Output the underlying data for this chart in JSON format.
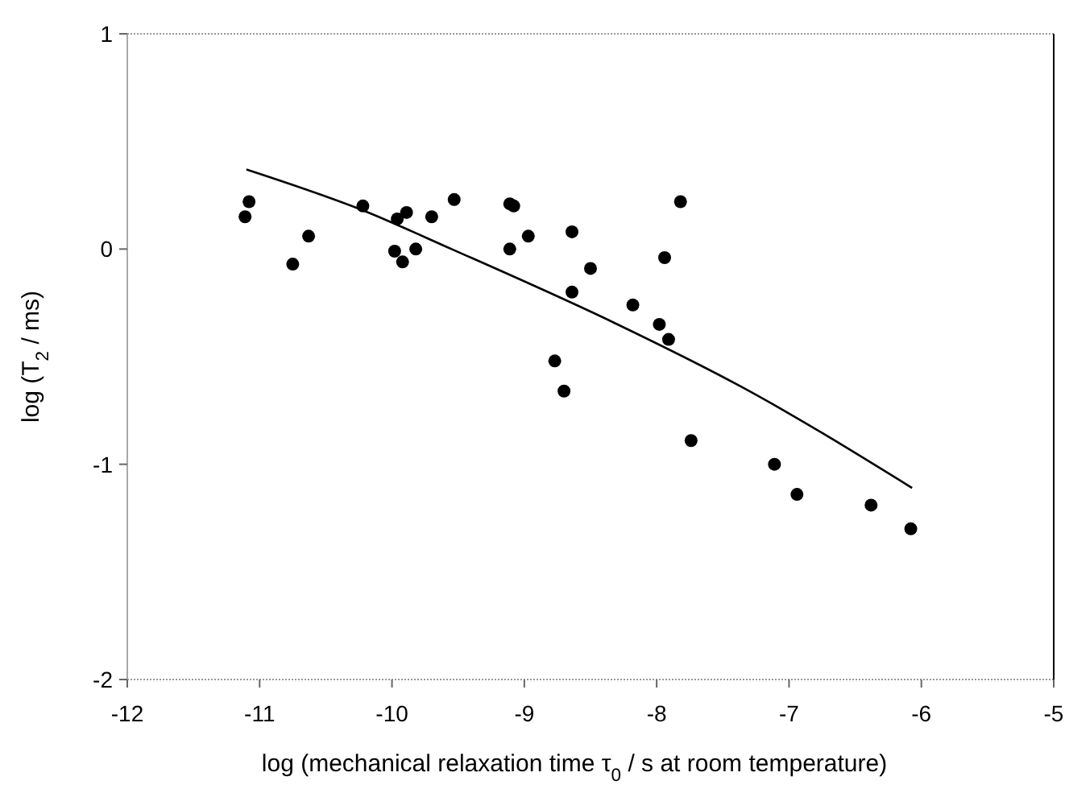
{
  "chart_data": {
    "type": "scatter",
    "xlabel": "log (mechanical relaxation time τ$_{0}$ / s at room temperature)",
    "ylabel": "log (T$_{2}$ / ms)",
    "xlim": [
      -12,
      -5
    ],
    "ylim": [
      -2,
      1
    ],
    "xticks": [
      -12,
      -11,
      -10,
      -9,
      -8,
      -7,
      -6,
      -5
    ],
    "yticks": [
      -2,
      -1,
      0,
      1
    ],
    "marker": "circle",
    "grid": false,
    "series": [
      {
        "color": "#000000",
        "x": [
          -11.08,
          -11.11,
          -10.75,
          -10.63,
          -10.22,
          -9.96,
          -9.89,
          -9.98,
          -9.92,
          -9.82,
          -9.7,
          -9.53,
          -9.11,
          -9.08,
          -9.11,
          -8.97,
          -8.64,
          -8.5,
          -8.64,
          -7.82,
          -7.94,
          -8.18,
          -7.98,
          -7.91,
          -8.77,
          -8.7,
          -7.74,
          -7.11,
          -6.94,
          -6.38,
          -6.08
        ],
        "values": [
          0.22,
          0.15,
          -0.07,
          0.06,
          0.2,
          0.14,
          0.17,
          -0.01,
          -0.06,
          0.0,
          0.15,
          0.23,
          0.21,
          0.2,
          0.0,
          0.06,
          0.08,
          -0.09,
          -0.2,
          0.22,
          -0.04,
          -0.26,
          -0.35,
          -0.42,
          -0.52,
          -0.66,
          -0.89,
          -1.0,
          -1.14,
          -1.19,
          -1.3
        ]
      },
      {
        "type": "line",
        "color": "#000000",
        "marker": "none",
        "x": [
          -11.1,
          -10.22,
          -9.55,
          -8.33,
          -7.36,
          -6.07
        ],
        "values": [
          0.37,
          0.18,
          0.0,
          -0.34,
          -0.64,
          -1.11
        ]
      }
    ]
  }
}
